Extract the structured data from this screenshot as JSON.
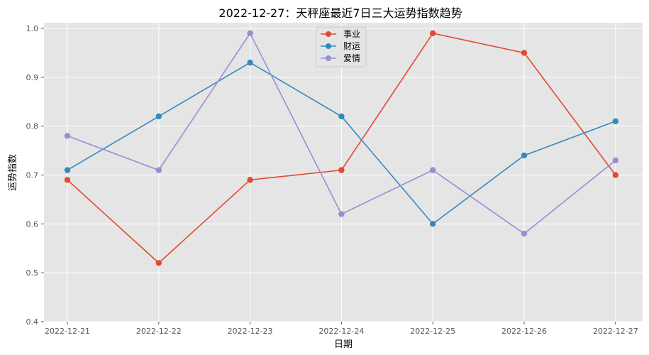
{
  "chart_data": {
    "type": "line",
    "title": "2022-12-27：天秤座最近7日三大运势指数趋势",
    "xlabel": "日期",
    "ylabel": "运势指数",
    "categories": [
      "2022-12-21",
      "2022-12-22",
      "2022-12-23",
      "2022-12-24",
      "2022-12-25",
      "2022-12-26",
      "2022-12-27"
    ],
    "ylim": [
      0.4,
      1.0
    ],
    "yticks": [
      "0.4",
      "0.5",
      "0.6",
      "0.7",
      "0.8",
      "0.9",
      "1.0"
    ],
    "grid": true,
    "legend_position": "top-center",
    "series": [
      {
        "name": "事业",
        "color": "#E24A33",
        "values": [
          0.69,
          0.52,
          0.69,
          0.71,
          0.99,
          0.95,
          0.7
        ]
      },
      {
        "name": "财运",
        "color": "#348ABD",
        "values": [
          0.71,
          0.82,
          0.93,
          0.82,
          0.6,
          0.74,
          0.81
        ]
      },
      {
        "name": "爱情",
        "color": "#988ED5",
        "values": [
          0.78,
          0.71,
          0.99,
          0.62,
          0.71,
          0.58,
          0.73
        ]
      }
    ]
  }
}
